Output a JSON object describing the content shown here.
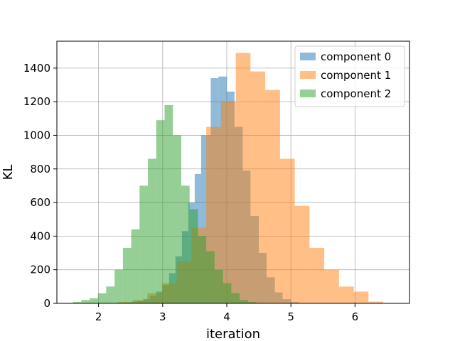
{
  "chart_data": {
    "type": "bar",
    "title": "",
    "xlabel": "iteration",
    "ylabel": "KL",
    "xlim": [
      1.35,
      6.85
    ],
    "ylim": [
      0,
      1560
    ],
    "xticks": [
      2,
      3,
      4,
      5,
      6
    ],
    "yticks": [
      0,
      200,
      400,
      600,
      800,
      1000,
      1200,
      1400
    ],
    "grid": true,
    "legend_position": "top-right",
    "series": [
      {
        "name": "component 0",
        "color": "#1f77b4",
        "bins": [
          [
            2.1,
            2.2,
            1
          ],
          [
            2.2,
            2.3,
            2
          ],
          [
            2.3,
            2.4,
            3
          ],
          [
            2.4,
            2.5,
            5
          ],
          [
            2.5,
            2.6,
            8
          ],
          [
            2.6,
            2.7,
            14
          ],
          [
            2.7,
            2.8,
            25
          ],
          [
            2.8,
            2.9,
            45
          ],
          [
            2.9,
            3.0,
            70
          ],
          [
            3.0,
            3.1,
            110
          ],
          [
            3.1,
            3.2,
            180
          ],
          [
            3.2,
            3.3,
            280
          ],
          [
            3.3,
            3.4,
            430
          ],
          [
            3.4,
            3.5,
            600
          ],
          [
            3.5,
            3.6,
            770
          ],
          [
            3.6,
            3.75,
            1000
          ],
          [
            3.75,
            3.87,
            1340
          ],
          [
            3.87,
            4.0,
            1350
          ],
          [
            4.0,
            4.12,
            1260
          ],
          [
            4.12,
            4.25,
            1050
          ],
          [
            4.25,
            4.37,
            790
          ],
          [
            4.37,
            4.5,
            520
          ],
          [
            4.5,
            4.62,
            300
          ],
          [
            4.62,
            4.75,
            155
          ],
          [
            4.75,
            4.87,
            65
          ],
          [
            4.87,
            5.0,
            25
          ],
          [
            5.0,
            5.12,
            8
          ]
        ]
      },
      {
        "name": "component 1",
        "color": "#ff7f0e",
        "bins": [
          [
            2.3,
            2.53,
            8
          ],
          [
            2.53,
            2.76,
            20
          ],
          [
            2.76,
            2.99,
            60
          ],
          [
            2.99,
            3.22,
            120
          ],
          [
            3.22,
            3.45,
            250
          ],
          [
            3.45,
            3.68,
            450
          ],
          [
            3.68,
            3.91,
            1050
          ],
          [
            3.91,
            4.14,
            1200
          ],
          [
            4.14,
            4.37,
            1490
          ],
          [
            4.37,
            4.6,
            1380
          ],
          [
            4.6,
            4.83,
            1270
          ],
          [
            4.83,
            5.06,
            860
          ],
          [
            5.06,
            5.29,
            580
          ],
          [
            5.29,
            5.52,
            330
          ],
          [
            5.52,
            5.75,
            200
          ],
          [
            5.75,
            5.98,
            100
          ],
          [
            5.98,
            6.21,
            70
          ],
          [
            6.21,
            6.44,
            10
          ]
        ]
      },
      {
        "name": "component 2",
        "color": "#2ca02c",
        "bins": [
          [
            1.6,
            1.73,
            8
          ],
          [
            1.73,
            1.86,
            20
          ],
          [
            1.86,
            1.99,
            30
          ],
          [
            1.99,
            2.12,
            60
          ],
          [
            2.12,
            2.25,
            100
          ],
          [
            2.25,
            2.38,
            200
          ],
          [
            2.38,
            2.51,
            330
          ],
          [
            2.51,
            2.64,
            440
          ],
          [
            2.64,
            2.77,
            700
          ],
          [
            2.77,
            2.9,
            860
          ],
          [
            2.9,
            3.03,
            1090
          ],
          [
            3.03,
            3.16,
            1180
          ],
          [
            3.16,
            3.29,
            1000
          ],
          [
            3.29,
            3.42,
            700
          ],
          [
            3.42,
            3.55,
            560
          ],
          [
            3.55,
            3.68,
            400
          ],
          [
            3.68,
            3.81,
            310
          ],
          [
            3.81,
            3.94,
            200
          ],
          [
            3.94,
            4.07,
            120
          ],
          [
            4.07,
            4.2,
            60
          ],
          [
            4.2,
            4.33,
            20
          ],
          [
            4.33,
            4.46,
            8
          ]
        ]
      }
    ]
  }
}
